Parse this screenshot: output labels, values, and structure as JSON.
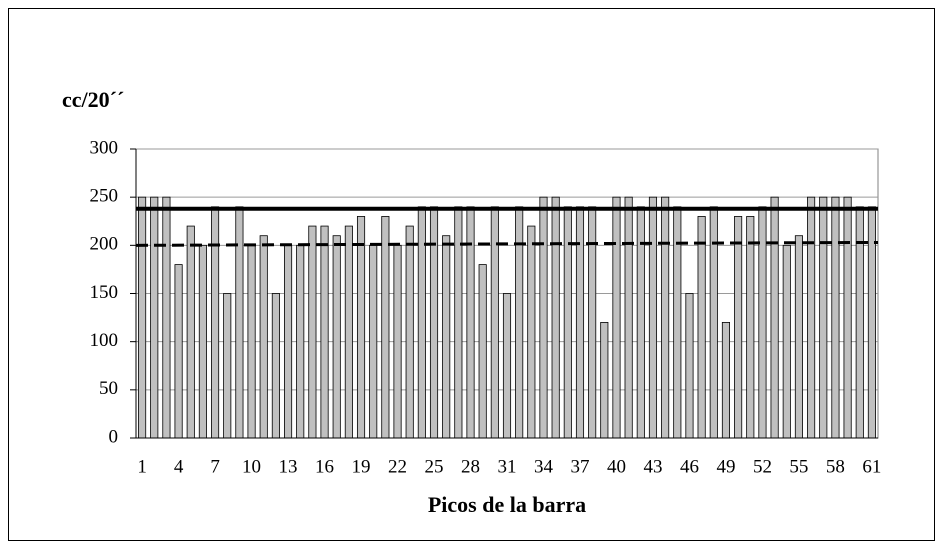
{
  "chart_data": {
    "type": "bar",
    "y_label": "cc/20´´",
    "x_label": "Picos de la barra",
    "categories": [
      "1",
      null,
      null,
      "4",
      null,
      null,
      "7",
      null,
      null,
      "10",
      null,
      null,
      "13",
      null,
      null,
      "16",
      null,
      null,
      "19",
      null,
      null,
      "22",
      null,
      null,
      "25",
      null,
      null,
      "28",
      null,
      null,
      "31",
      null,
      null,
      "34",
      null,
      null,
      "37",
      null,
      null,
      "40",
      null,
      null,
      "43",
      null,
      null,
      "46",
      null,
      null,
      "49",
      null,
      null,
      "52",
      null,
      null,
      "55",
      null,
      null,
      "58",
      null,
      null,
      "61"
    ],
    "values": [
      250,
      250,
      250,
      180,
      220,
      200,
      240,
      150,
      240,
      200,
      210,
      150,
      200,
      200,
      220,
      220,
      210,
      220,
      230,
      200,
      230,
      200,
      220,
      240,
      240,
      210,
      240,
      240,
      180,
      240,
      150,
      240,
      220,
      250,
      250,
      240,
      240,
      240,
      120,
      250,
      250,
      240,
      250,
      250,
      240,
      150,
      230,
      240,
      120,
      230,
      230,
      240,
      250,
      200,
      210,
      250,
      250,
      250,
      250,
      240,
      240
    ],
    "color": "#c0c0c0",
    "ylim": [
      0,
      300
    ],
    "yticks": [
      0,
      50,
      100,
      150,
      200,
      250,
      300
    ],
    "grid": true,
    "reference_lines": [
      {
        "style": "solid",
        "color": "#000000",
        "values": [
          238,
          238
        ]
      },
      {
        "style": "dashed",
        "color": "#000000",
        "values": [
          200,
          203
        ]
      }
    ]
  }
}
